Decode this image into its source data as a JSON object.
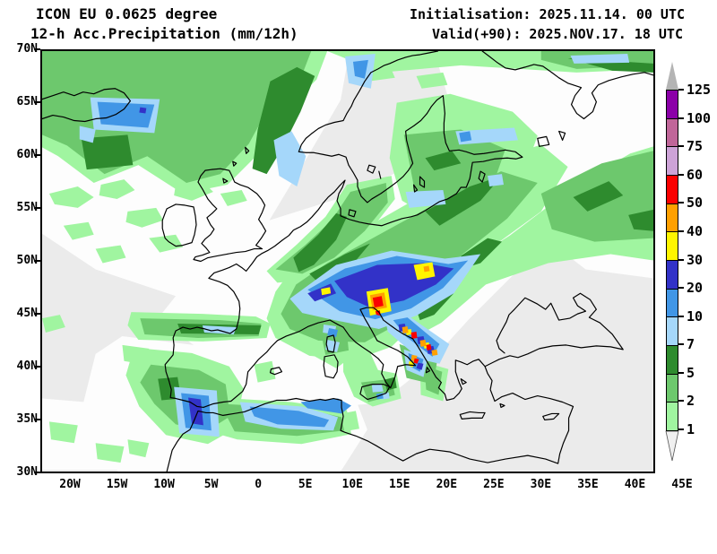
{
  "header": {
    "model_line": "ICON EU 0.0625 degree",
    "product_line": "12-h Acc.Precipitation (mm/12h)",
    "init_line": "Initialisation: 2025.11.14. 00 UTC",
    "valid_line": "Valid(+90): 2025.NOV.17. 18 UTC"
  },
  "map": {
    "lat_ticks": [
      "70N",
      "65N",
      "60N",
      "55N",
      "50N",
      "45N",
      "40N",
      "35N",
      "30N"
    ],
    "lon_ticks": [
      "20W",
      "15W",
      "10W",
      "5W",
      "0",
      "5E",
      "10E",
      "15E",
      "20E",
      "25E",
      "30E",
      "35E",
      "40E",
      "45E"
    ]
  },
  "legend": {
    "boundary_labels": [
      "125",
      "100",
      "75",
      "60",
      "50",
      "40",
      "30",
      "20",
      "10",
      "7",
      "5",
      "2",
      "1"
    ],
    "segment_colors_top_to_bottom": [
      "#8b00a8",
      "#c06699",
      "#cda3d7",
      "#fa0000",
      "#ffa000",
      "#fff500",
      "#3232c8",
      "#4196e6",
      "#a5d7fa",
      "#2e8b2e",
      "#6dc86d",
      "#a0f5a0"
    ],
    "above_max_color": "#b4b4b4",
    "below_min_color": "#f0f0f0"
  },
  "palette": {
    "dry": "#ebebeb",
    "trace": "#fdfdfd",
    "green_light": "#a0f5a0",
    "green_mid": "#6dc86d",
    "green_dark": "#2e8b2e",
    "blue_light": "#a5d7fa",
    "blue_mid": "#4196e6",
    "blue_royal": "#3232c8",
    "yellow": "#fff500",
    "orange": "#ffa000",
    "red": "#fa0000",
    "coast": "#000000"
  }
}
